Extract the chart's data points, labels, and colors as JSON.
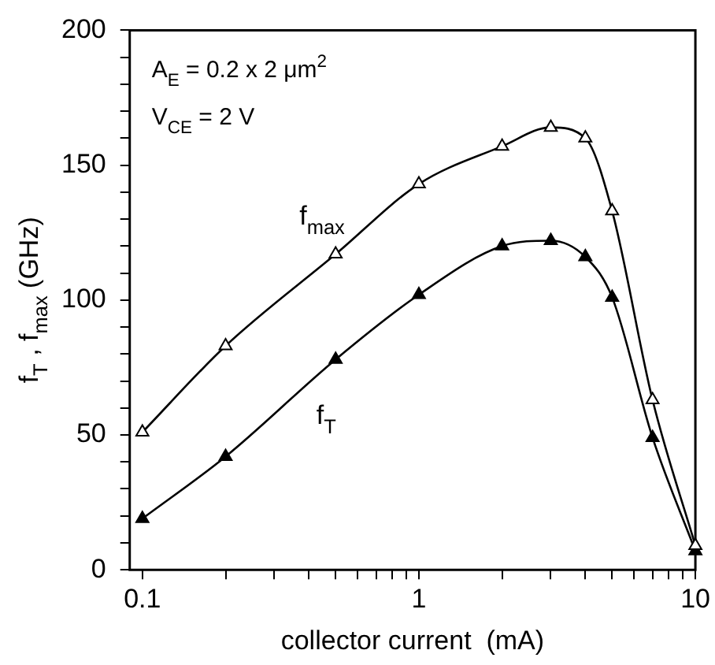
{
  "chart_data": {
    "type": "line",
    "xlabel": "collector current  (mA)",
    "ylabel": "f$_{T}$ , f$_{max}$ (GHz)",
    "annotations": [
      "A$_{E}$ = 0.2 x 2 μm$^{2}$",
      "V$_{CE}$ = 2 V"
    ],
    "x": [
      0.1,
      0.2,
      0.5,
      1,
      2,
      3,
      4,
      5,
      7,
      10
    ],
    "series": [
      {
        "name": "f$_{max}$",
        "color": "#000000",
        "values": [
          51,
          83,
          117,
          143,
          157,
          164,
          160,
          133,
          63,
          9
        ]
      },
      {
        "name": "f$_{T}$",
        "color": "#000000",
        "values": [
          19,
          42,
          78,
          102,
          120,
          122,
          116,
          101,
          49,
          7
        ]
      }
    ],
    "log": "x",
    "xlim": [
      0.09,
      10
    ],
    "xticks": [
      {
        "value": 0.1,
        "label": "0.1"
      },
      {
        "value": 0.2,
        "label": null
      },
      {
        "value": 0.3,
        "label": null
      },
      {
        "value": 0.4,
        "label": null
      },
      {
        "value": 0.5,
        "label": null
      },
      {
        "value": 0.6,
        "label": null
      },
      {
        "value": 0.7,
        "label": null
      },
      {
        "value": 0.8,
        "label": null
      },
      {
        "value": 0.9,
        "label": null
      },
      1,
      {
        "value": 2,
        "label": null
      },
      {
        "value": 3,
        "label": null
      },
      {
        "value": 4,
        "label": null
      },
      {
        "value": 5,
        "label": null
      },
      {
        "value": 6,
        "label": null
      },
      {
        "value": 7,
        "label": null
      },
      {
        "value": 8,
        "label": null
      },
      {
        "value": 9,
        "label": null
      },
      10
    ],
    "ylim": [
      0,
      200
    ],
    "yticks": [
      0,
      {
        "value": 10,
        "label": null
      },
      {
        "value": 20,
        "label": null
      },
      {
        "value": 30,
        "label": null
      },
      {
        "value": 40,
        "label": null
      },
      50,
      {
        "value": 60,
        "label": null
      },
      {
        "value": 70,
        "label": null
      },
      {
        "value": 80,
        "label": null
      },
      {
        "value": 90,
        "label": null
      },
      100,
      {
        "value": 110,
        "label": null
      },
      {
        "value": 120,
        "label": null
      },
      {
        "value": 130,
        "label": null
      },
      {
        "value": 140,
        "label": null
      },
      150,
      {
        "value": 160,
        "label": null
      },
      {
        "value": 170,
        "label": null
      },
      {
        "value": 180,
        "label": null
      },
      {
        "value": 190,
        "label": null
      },
      200
    ],
    "grid": false,
    "legend": false,
    "marker": "triangle",
    "line_style": "solid"
  }
}
